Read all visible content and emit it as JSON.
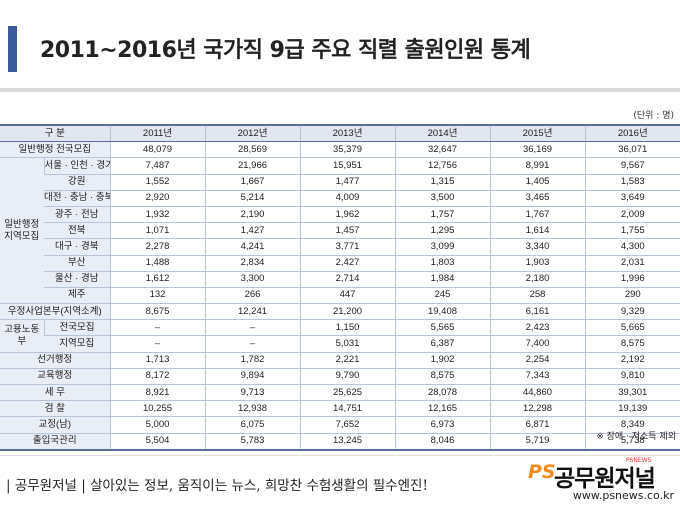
{
  "title": "2011~2016년 국가직 9급 주요 직렬 출원인원 통계",
  "unit": "(단위 : 명)",
  "table": {
    "header": [
      "구  분",
      "2011년",
      "2012년",
      "2013년",
      "2014년",
      "2015년",
      "2016년"
    ],
    "rows": [
      {
        "label": "일반행정 전국모집",
        "values": [
          "48,079",
          "28,569",
          "35,379",
          "32,647",
          "36,169",
          "36,071"
        ]
      },
      {
        "group": "일반행정 지역모집",
        "label": "서울 · 인천 · 경기",
        "values": [
          "7,487",
          "21,966",
          "15,951",
          "12,756",
          "8,991",
          "9,567"
        ]
      },
      {
        "label": "강원",
        "values": [
          "1,552",
          "1,667",
          "1,477",
          "1,315",
          "1,405",
          "1,583"
        ]
      },
      {
        "label": "대전 · 충남 · 충북",
        "values": [
          "2,920",
          "5,214",
          "4,009",
          "3,500",
          "3,465",
          "3,649"
        ]
      },
      {
        "label": "광주 · 전남",
        "values": [
          "1,932",
          "2,190",
          "1,962",
          "1,757",
          "1,767",
          "2,009"
        ]
      },
      {
        "label": "전북",
        "values": [
          "1,071",
          "1,427",
          "1,457",
          "1,295",
          "1,614",
          "1,755"
        ]
      },
      {
        "label": "대구 · 경북",
        "values": [
          "2,278",
          "4,241",
          "3,771",
          "3,099",
          "3,340",
          "4,300"
        ]
      },
      {
        "label": "부산",
        "values": [
          "1,488",
          "2,834",
          "2,427",
          "1,803",
          "1,903",
          "2,031"
        ]
      },
      {
        "label": "울산 · 경남",
        "values": [
          "1,612",
          "3,300",
          "2,714",
          "1,984",
          "2,180",
          "1,996"
        ]
      },
      {
        "label": "제주",
        "values": [
          "132",
          "266",
          "447",
          "245",
          "258",
          "290"
        ]
      },
      {
        "label": "우정사업본부(지역소계)",
        "values": [
          "8,675",
          "12,241",
          "21,200",
          "19,408",
          "6,161",
          "9,329"
        ]
      },
      {
        "group": "고용노동부",
        "label": "전국모집",
        "values": [
          "–",
          "–",
          "1,150",
          "5,565",
          "2,423",
          "5,665"
        ]
      },
      {
        "label": "지역모집",
        "values": [
          "–",
          "–",
          "5,031",
          "6,387",
          "7,400",
          "8,575"
        ]
      },
      {
        "label": "선거행정",
        "values": [
          "1,713",
          "1,782",
          "2,221",
          "1,902",
          "2,254",
          "2,192"
        ]
      },
      {
        "label": "교육행정",
        "values": [
          "8,172",
          "9,894",
          "9,790",
          "8,575",
          "7,343",
          "9,810"
        ]
      },
      {
        "label": "세  무",
        "values": [
          "8,921",
          "9,713",
          "25,625",
          "28,078",
          "44,860",
          "39,301"
        ]
      },
      {
        "label": "검  찰",
        "values": [
          "10,255",
          "12,938",
          "14,751",
          "12,165",
          "12,298",
          "19,139"
        ]
      },
      {
        "label": "교정(남)",
        "values": [
          "5,000",
          "6,075",
          "7,652",
          "6,973",
          "6,871",
          "8,349"
        ]
      },
      {
        "label": "출입국관리",
        "values": [
          "5,504",
          "5,783",
          "13,245",
          "8,046",
          "5,719",
          "5,738"
        ]
      }
    ]
  },
  "note": "※ 장애 · 저소득 제외",
  "footer": {
    "slogan": "| 공무원저널 | 살아있는 정보, 움직이는 뉴스, 희망찬 수험생활의 필수엔진!",
    "brand_ps": "PS",
    "brand_name": "공무원저널",
    "brand_sub": "PSNEWS",
    "url": "www.psnews.co.kr"
  },
  "colors": {
    "accent": "#3a5a9c",
    "header_bg": "#e1e6f0",
    "label_bg": "#e9edf5",
    "brand_orange": "#f08a1c"
  }
}
